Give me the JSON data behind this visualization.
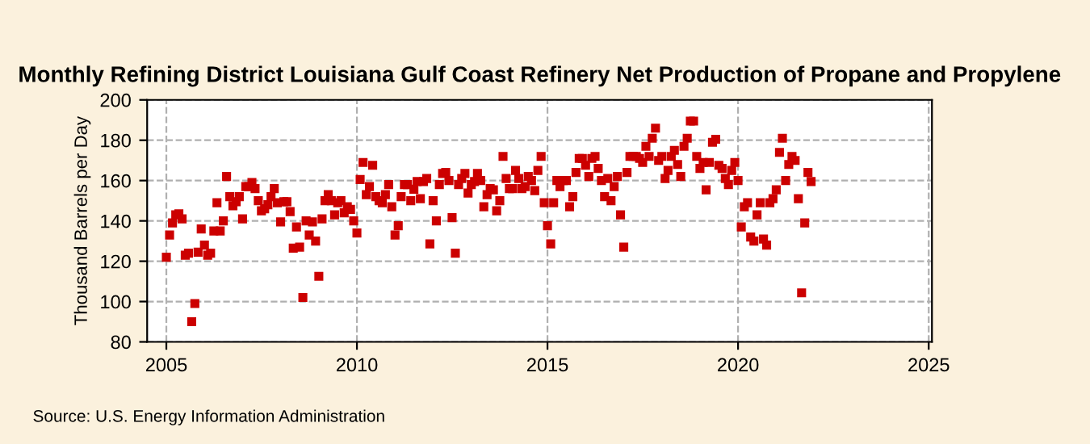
{
  "chart_data": {
    "type": "scatter",
    "title": "Monthly Refining District Louisiana Gulf Coast Refinery Net Production of Propane and Propylene",
    "ylabel": "Thousand Barrels per Day",
    "annotations": [
      "Source: U.S. Energy Information Administration"
    ],
    "xlim": [
      "2004-07",
      "2025-02"
    ],
    "xticks": [
      {
        "value": "2005-01",
        "label": "2005"
      },
      {
        "value": "2010-01",
        "label": "2010"
      },
      {
        "value": "2015-01",
        "label": "2015"
      },
      {
        "value": "2020-01",
        "label": "2020"
      },
      {
        "value": "2025-01",
        "label": "2025"
      }
    ],
    "ylim": [
      80,
      200
    ],
    "yticks": [
      80,
      100,
      120,
      140,
      160,
      180,
      200
    ],
    "grid": true,
    "marker": "square",
    "x": [
      "2005-01",
      "2005-02",
      "2005-03",
      "2005-04",
      "2005-05",
      "2005-06",
      "2005-07",
      "2005-08",
      "2005-09",
      "2005-10",
      "2005-11",
      "2005-12",
      "2006-01",
      "2006-02",
      "2006-03",
      "2006-04",
      "2006-05",
      "2006-06",
      "2006-07",
      "2006-08",
      "2006-09",
      "2006-10",
      "2006-11",
      "2006-12",
      "2007-01",
      "2007-02",
      "2007-03",
      "2007-04",
      "2007-05",
      "2007-06",
      "2007-07",
      "2007-08",
      "2007-09",
      "2007-10",
      "2007-11",
      "2007-12",
      "2008-01",
      "2008-02",
      "2008-03",
      "2008-04",
      "2008-05",
      "2008-06",
      "2008-07",
      "2008-08",
      "2008-09",
      "2008-10",
      "2008-11",
      "2008-12",
      "2009-01",
      "2009-02",
      "2009-03",
      "2009-04",
      "2009-05",
      "2009-06",
      "2009-07",
      "2009-08",
      "2009-09",
      "2009-10",
      "2009-11",
      "2009-12",
      "2010-01",
      "2010-02",
      "2010-03",
      "2010-04",
      "2010-05",
      "2010-06",
      "2010-07",
      "2010-08",
      "2010-09",
      "2010-10",
      "2010-11",
      "2010-12",
      "2011-01",
      "2011-02",
      "2011-03",
      "2011-04",
      "2011-05",
      "2011-06",
      "2011-07",
      "2011-08",
      "2011-09",
      "2011-10",
      "2011-11",
      "2011-12",
      "2012-01",
      "2012-02",
      "2012-03",
      "2012-04",
      "2012-05",
      "2012-06",
      "2012-07",
      "2012-08",
      "2012-09",
      "2012-10",
      "2012-11",
      "2012-12",
      "2013-01",
      "2013-02",
      "2013-03",
      "2013-04",
      "2013-05",
      "2013-06",
      "2013-07",
      "2013-08",
      "2013-09",
      "2013-10",
      "2013-11",
      "2013-12",
      "2014-01",
      "2014-02",
      "2014-03",
      "2014-04",
      "2014-05",
      "2014-06",
      "2014-07",
      "2014-08",
      "2014-09",
      "2014-10",
      "2014-11",
      "2014-12",
      "2015-01",
      "2015-02",
      "2015-03",
      "2015-04",
      "2015-05",
      "2015-06",
      "2015-07",
      "2015-08",
      "2015-09",
      "2015-10",
      "2015-11",
      "2015-12",
      "2016-01",
      "2016-02",
      "2016-03",
      "2016-04",
      "2016-05",
      "2016-06",
      "2016-07",
      "2016-08",
      "2016-09",
      "2016-10",
      "2016-11",
      "2016-12",
      "2017-01",
      "2017-02",
      "2017-03",
      "2017-04",
      "2017-05",
      "2017-06",
      "2017-07",
      "2017-08",
      "2017-09",
      "2017-10",
      "2017-11",
      "2017-12",
      "2018-01",
      "2018-02",
      "2018-03",
      "2018-04",
      "2018-05",
      "2018-06",
      "2018-07",
      "2018-08",
      "2018-09",
      "2018-10",
      "2018-11",
      "2018-12",
      "2019-01",
      "2019-02",
      "2019-03",
      "2019-04",
      "2019-05",
      "2019-06",
      "2019-07",
      "2019-08",
      "2019-09",
      "2019-10",
      "2019-11",
      "2019-12",
      "2020-01",
      "2020-02",
      "2020-03",
      "2020-04",
      "2020-05",
      "2020-06",
      "2020-07",
      "2020-08",
      "2020-09",
      "2020-10",
      "2020-11",
      "2020-12",
      "2021-01",
      "2021-02",
      "2021-03",
      "2021-04",
      "2021-05",
      "2021-06",
      "2021-07",
      "2021-08",
      "2021-09",
      "2021-10",
      "2021-11",
      "2021-12"
    ],
    "series": [
      {
        "color": "#cc0000",
        "values": [
          122,
          133,
          139,
          143,
          143.5,
          141,
          123,
          124,
          90,
          99,
          124.5,
          136,
          128,
          123,
          124,
          135,
          149,
          135,
          140,
          162,
          152,
          147.5,
          149.5,
          152,
          141,
          157,
          157,
          159,
          156,
          150,
          145,
          146,
          148,
          152,
          156,
          149,
          139.5,
          149.5,
          149.5,
          144.6,
          126.5,
          137,
          127,
          102,
          140,
          133,
          139.5,
          130,
          112.5,
          141,
          150,
          153,
          150,
          143,
          149,
          150,
          144,
          147,
          145.7,
          140,
          134,
          160.5,
          169,
          153,
          157,
          167.6,
          152,
          150,
          149,
          153,
          158,
          147,
          133,
          137.6,
          152,
          158,
          158,
          150,
          155.7,
          159.5,
          151,
          159.5,
          161,
          128.6,
          150,
          140,
          158,
          163.5,
          164,
          160,
          141.6,
          124,
          158,
          161,
          163.5,
          153.8,
          158,
          159.5,
          163.5,
          160,
          147,
          153,
          156,
          155.4,
          145,
          150,
          172,
          161,
          156,
          156,
          165,
          161,
          156,
          157,
          162,
          160,
          155,
          165,
          172,
          149,
          137.6,
          128.6,
          149,
          160,
          157,
          160,
          160,
          147,
          152,
          164,
          171,
          171,
          167.6,
          162,
          171,
          172,
          166,
          160,
          152,
          161,
          150,
          157,
          162,
          143,
          127,
          164,
          172,
          172,
          172,
          171,
          169,
          177,
          172,
          181,
          186,
          170,
          172,
          161,
          165,
          172,
          175,
          168,
          162,
          177,
          181,
          189.5,
          189.5,
          172,
          166,
          169,
          155.4,
          169,
          179,
          180.5,
          167.6,
          166,
          161,
          158,
          165,
          169,
          160,
          137,
          147,
          149,
          132,
          130,
          143,
          149,
          131,
          128,
          149,
          151,
          155.4,
          174,
          181,
          160,
          168,
          172,
          170,
          151,
          104.3,
          139,
          164,
          159.5
        ]
      }
    ]
  }
}
